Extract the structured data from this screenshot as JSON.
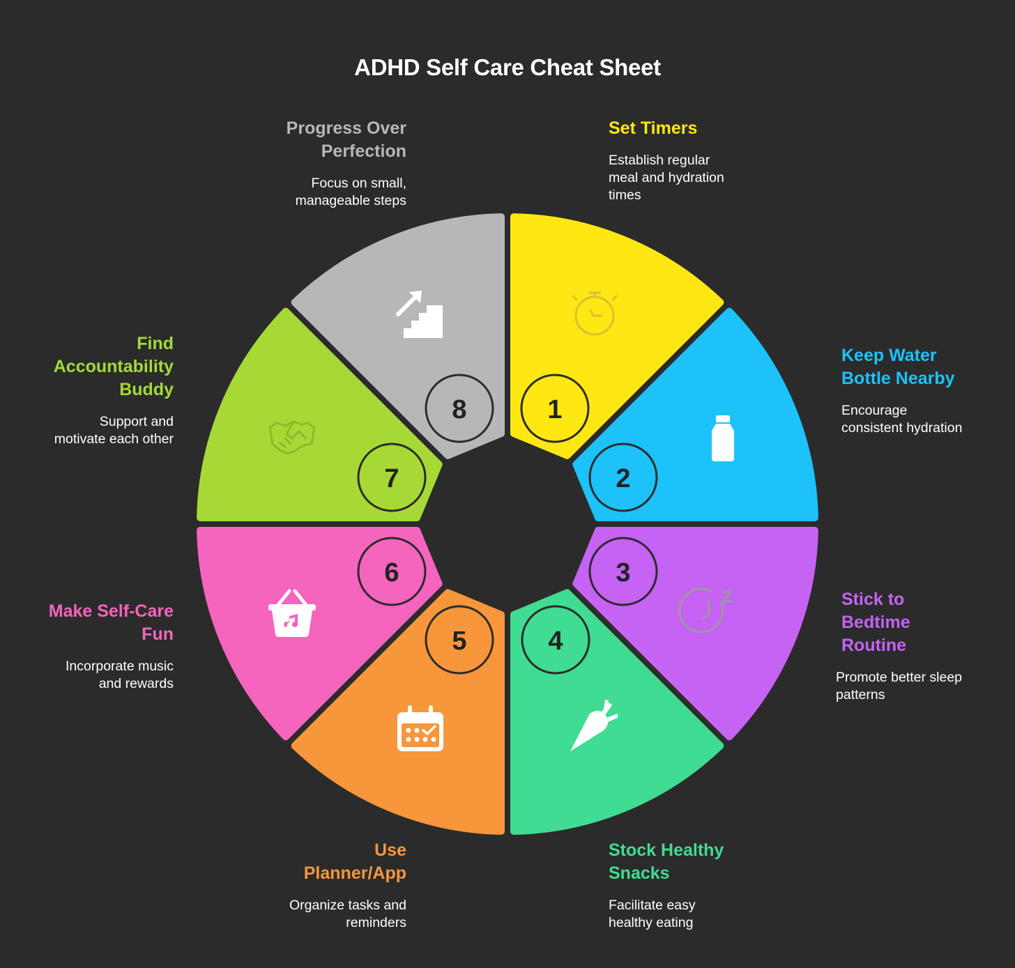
{
  "title": "ADHD Self Care Cheat Sheet",
  "background": "#2b2b2b",
  "steps": [
    {
      "number": "1",
      "title_lines": [
        "Set Timers"
      ],
      "desc_lines": [
        "Establish regular",
        "meal and hydration",
        "times"
      ],
      "color": "#ffe713",
      "icon": "stopwatch-icon"
    },
    {
      "number": "2",
      "title_lines": [
        "Keep Water",
        "Bottle Nearby"
      ],
      "desc_lines": [
        "Encourage",
        "consistent hydration"
      ],
      "color": "#1cc2f9",
      "icon": "water-bottle-icon"
    },
    {
      "number": "3",
      "title_lines": [
        "Stick to",
        "Bedtime",
        "Routine"
      ],
      "desc_lines": [
        "Promote better sleep",
        "patterns"
      ],
      "color": "#c662f4",
      "icon": "sleep-clock-icon"
    },
    {
      "number": "4",
      "title_lines": [
        "Stock Healthy",
        "Snacks"
      ],
      "desc_lines": [
        "Facilitate easy",
        "healthy eating"
      ],
      "color": "#40dc93",
      "icon": "carrot-icon"
    },
    {
      "number": "5",
      "title_lines": [
        "Use",
        "Planner/App"
      ],
      "desc_lines": [
        "Organize tasks and",
        "reminders"
      ],
      "color": "#f7963a",
      "icon": "calendar-icon"
    },
    {
      "number": "6",
      "title_lines": [
        "Make Self-Care",
        "Fun"
      ],
      "desc_lines": [
        "Incorporate music",
        "and rewards"
      ],
      "color": "#f564bd",
      "icon": "music-basket-icon"
    },
    {
      "number": "7",
      "title_lines": [
        "Find",
        "Accountability",
        "Buddy"
      ],
      "desc_lines": [
        "Support and",
        "motivate each other"
      ],
      "color": "#a6d935",
      "icon": "handshake-icon"
    },
    {
      "number": "8",
      "title_lines": [
        "Progress Over",
        "Perfection"
      ],
      "desc_lines": [
        "Focus on small,",
        "manageable steps"
      ],
      "color": "#b7b7b7",
      "icon": "stairs-icon"
    }
  ]
}
